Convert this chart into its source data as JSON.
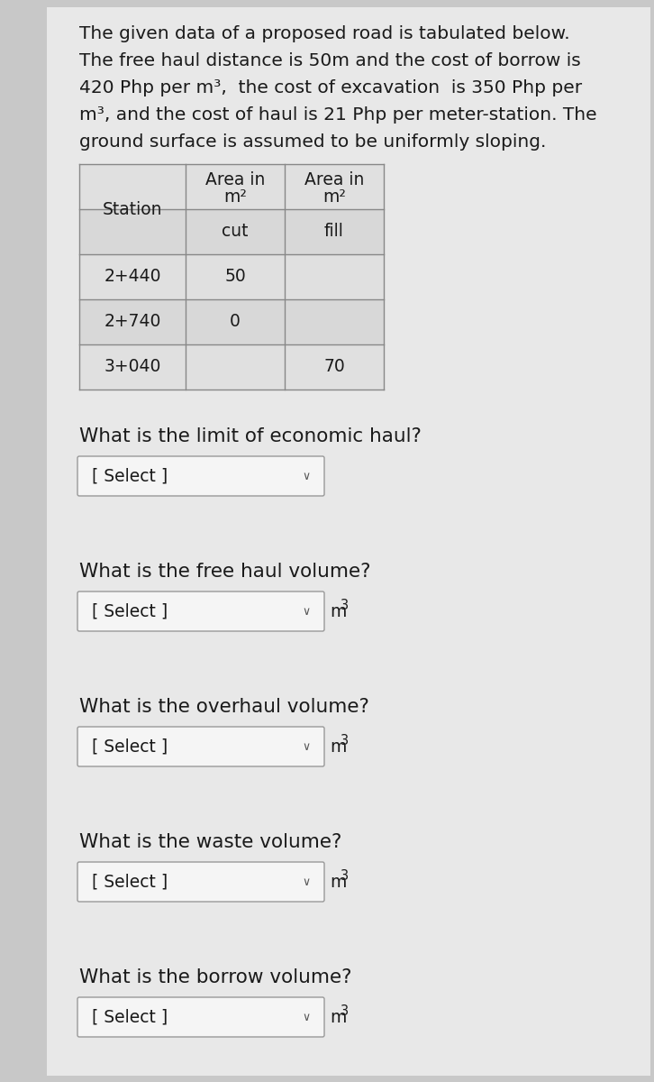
{
  "bg_color": "#c8c8c8",
  "card_color": "#e8e8e8",
  "text_color": "#1a1a1a",
  "title_lines": [
    "The given data of a proposed road is tabulated below.",
    "The free haul distance is 50m and the cost of borrow is",
    "420 Php per m³,  the cost of excavation  is 350 Php per",
    "m³, and the cost of haul is 21 Php per meter-station. The",
    "ground surface is assumed to be uniformly sloping."
  ],
  "table_rows": [
    [
      "2+440",
      "50",
      ""
    ],
    [
      "2+740",
      "0",
      ""
    ],
    [
      "3+040",
      "",
      "70"
    ]
  ],
  "questions": [
    "What is the limit of economic haul?",
    "What is the free haul volume?",
    "What is the overhaul volume?",
    "What is the waste volume?",
    "What is the borrow volume?"
  ],
  "has_unit": [
    false,
    true,
    true,
    true,
    true
  ],
  "unit": "m³",
  "select_label": "[ Select ]",
  "select_box_color": "#f5f5f5",
  "select_box_border": "#999999",
  "font_size_title": 14.5,
  "font_size_table": 13.5,
  "font_size_question": 15.5,
  "font_size_select": 13.5,
  "font_size_unit": 12.5
}
